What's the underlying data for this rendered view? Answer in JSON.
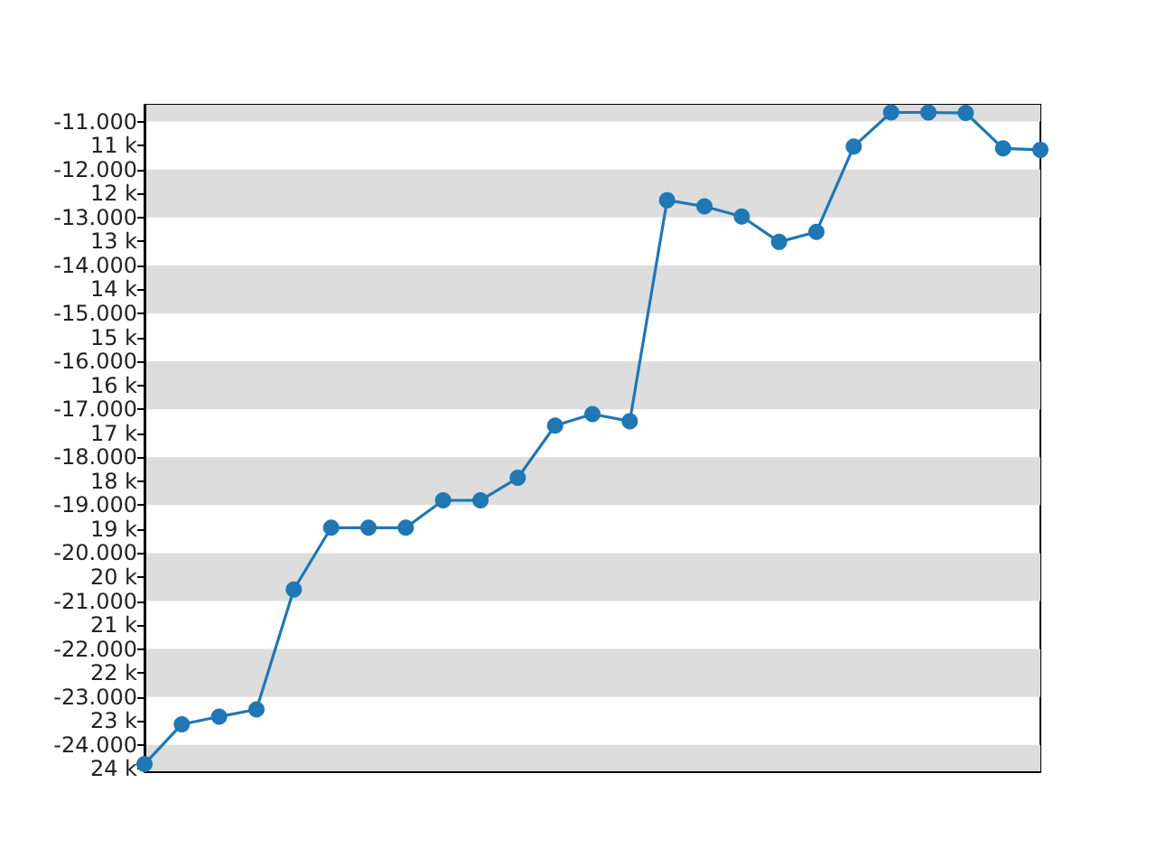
{
  "chart_data": {
    "type": "line",
    "categories": [
      null,
      null,
      null,
      null,
      null,
      null,
      null,
      null,
      null,
      null,
      null,
      null,
      null,
      null,
      null,
      null,
      null,
      null,
      null,
      null,
      null,
      null,
      null,
      null,
      null
    ],
    "series": [
      {
        "color": "#1f77b4",
        "values": [
          -24400,
          -23570,
          -23410,
          -23260,
          -20760,
          -19470,
          -19470,
          -19470,
          -18900,
          -18900,
          -18430,
          -17340,
          -17100,
          -17250,
          -12640,
          -12770,
          -12980,
          -13510,
          -13300,
          -11520,
          -10810,
          -10810,
          -10820,
          -11560,
          -11590
        ]
      }
    ],
    "ylim": [
      -24550,
      -10650
    ],
    "yticks": [
      {
        "value": -11000,
        "label": "-11.000"
      },
      {
        "value": -11500,
        "label": "11 k"
      },
      {
        "value": -12000,
        "label": "-12.000"
      },
      {
        "value": -12500,
        "label": "12 k"
      },
      {
        "value": -13000,
        "label": "-13.000"
      },
      {
        "value": -13500,
        "label": "13 k"
      },
      {
        "value": -14000,
        "label": "-14.000"
      },
      {
        "value": -14500,
        "label": "14 k"
      },
      {
        "value": -15000,
        "label": "-15.000"
      },
      {
        "value": -15500,
        "label": "15 k"
      },
      {
        "value": -16000,
        "label": "-16.000"
      },
      {
        "value": -16500,
        "label": "16 k"
      },
      {
        "value": -17000,
        "label": "-17.000"
      },
      {
        "value": -17500,
        "label": "17 k"
      },
      {
        "value": -18000,
        "label": "-18.000"
      },
      {
        "value": -18500,
        "label": "18 k"
      },
      {
        "value": -19000,
        "label": "-19.000"
      },
      {
        "value": -19500,
        "label": "19 k"
      },
      {
        "value": -20000,
        "label": "-20.000"
      },
      {
        "value": -20500,
        "label": "20 k"
      },
      {
        "value": -21000,
        "label": "-21.000"
      },
      {
        "value": -21500,
        "label": "21 k"
      },
      {
        "value": -22000,
        "label": "-22.000"
      },
      {
        "value": -22500,
        "label": "22 k"
      },
      {
        "value": -23000,
        "label": "-23.000"
      },
      {
        "value": -23500,
        "label": "23 k"
      },
      {
        "value": -24000,
        "label": "-24.000"
      },
      {
        "value": -24500,
        "label": "24 k"
      }
    ],
    "bands": [
      {
        "axis": "y",
        "from": -11000,
        "to": -10650,
        "color": "#dddddd"
      },
      {
        "axis": "y",
        "from": -13000,
        "to": -12000,
        "color": "#dddddd"
      },
      {
        "axis": "y",
        "from": -15000,
        "to": -14000,
        "color": "#dddddd"
      },
      {
        "axis": "y",
        "from": -17000,
        "to": -16000,
        "color": "#dddddd"
      },
      {
        "axis": "y",
        "from": -19000,
        "to": -18000,
        "color": "#dddddd"
      },
      {
        "axis": "y",
        "from": -21000,
        "to": -20000,
        "color": "#dddddd"
      },
      {
        "axis": "y",
        "from": -23000,
        "to": -22000,
        "color": "#dddddd"
      },
      {
        "axis": "y",
        "from": -24550,
        "to": -24000,
        "color": "#dddddd"
      }
    ],
    "marker": "circle",
    "line_style": "solid",
    "grid": false,
    "tick_labels": "y"
  }
}
